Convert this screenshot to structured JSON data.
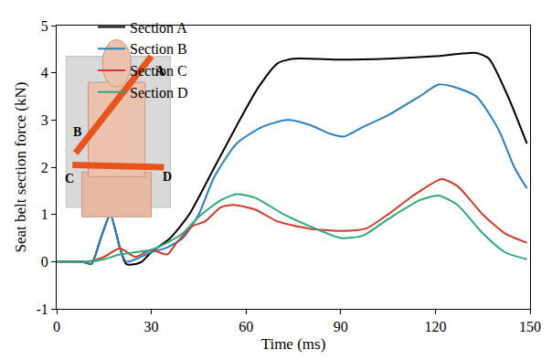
{
  "chart_data": {
    "type": "line",
    "x_label": "Time (ms)",
    "y_label": "Seat belt section force (kN)",
    "xlim": [
      0,
      150
    ],
    "xticks": [
      0,
      30,
      60,
      90,
      120,
      150
    ],
    "ylim": [
      -1,
      5
    ],
    "yticks": [
      -1,
      0,
      1,
      2,
      3,
      4,
      5
    ],
    "grid": false,
    "legend": "top",
    "annotations": [
      "A",
      "B",
      "C",
      "D"
    ],
    "series": [
      {
        "name": "Section A",
        "color": "#000000",
        "x": [
          0,
          8,
          11,
          14,
          17,
          20,
          22,
          25,
          27,
          30,
          36,
          42,
          50,
          58,
          64,
          70,
          75,
          90,
          105,
          120,
          133,
          137,
          143,
          149
        ],
        "values": [
          0,
          0,
          -0.05,
          0.5,
          1.0,
          0.3,
          -0.05,
          -0.05,
          0,
          0.2,
          0.5,
          1.0,
          2.0,
          3.0,
          3.7,
          4.2,
          4.3,
          4.28,
          4.3,
          4.35,
          4.42,
          4.3,
          3.5,
          2.5
        ]
      },
      {
        "name": "Section B",
        "color": "#2a7fc1",
        "x": [
          0,
          8,
          11,
          14,
          17,
          20,
          22,
          25,
          30,
          35,
          40,
          45,
          50,
          57,
          65,
          73,
          80,
          87,
          91,
          97,
          105,
          115,
          121,
          126,
          133,
          140,
          145,
          149
        ],
        "values": [
          0,
          0,
          -0.05,
          0.5,
          1.0,
          0.3,
          0,
          0.05,
          0.2,
          0.3,
          0.5,
          1.0,
          1.8,
          2.5,
          2.85,
          3.0,
          2.9,
          2.7,
          2.65,
          2.85,
          3.1,
          3.5,
          3.75,
          3.7,
          3.5,
          2.8,
          2.0,
          1.55
        ]
      },
      {
        "name": "Section C",
        "color": "#d03a2a",
        "x": [
          0,
          10,
          15,
          20,
          25,
          30,
          35,
          38,
          43,
          47,
          52,
          56,
          63,
          70,
          80,
          90,
          98,
          105,
          113,
          122,
          127,
          135,
          142,
          149
        ],
        "values": [
          0,
          0,
          0.1,
          0.28,
          0.1,
          0.25,
          0.15,
          0.4,
          0.75,
          0.85,
          1.15,
          1.2,
          1.1,
          0.85,
          0.7,
          0.65,
          0.7,
          1.0,
          1.4,
          1.75,
          1.6,
          1.0,
          0.6,
          0.4
        ]
      },
      {
        "name": "Section D",
        "color": "#2ca87a",
        "x": [
          0,
          10,
          15,
          20,
          25,
          30,
          35,
          40,
          45,
          52,
          57,
          63,
          72,
          82,
          90,
          97,
          105,
          115,
          121,
          127,
          135,
          142,
          149
        ],
        "values": [
          0,
          0,
          0.05,
          0.15,
          0.2,
          0.25,
          0.4,
          0.6,
          0.95,
          1.3,
          1.43,
          1.35,
          1.0,
          0.7,
          0.5,
          0.55,
          0.9,
          1.3,
          1.4,
          1.2,
          0.6,
          0.2,
          0.05
        ]
      }
    ]
  }
}
